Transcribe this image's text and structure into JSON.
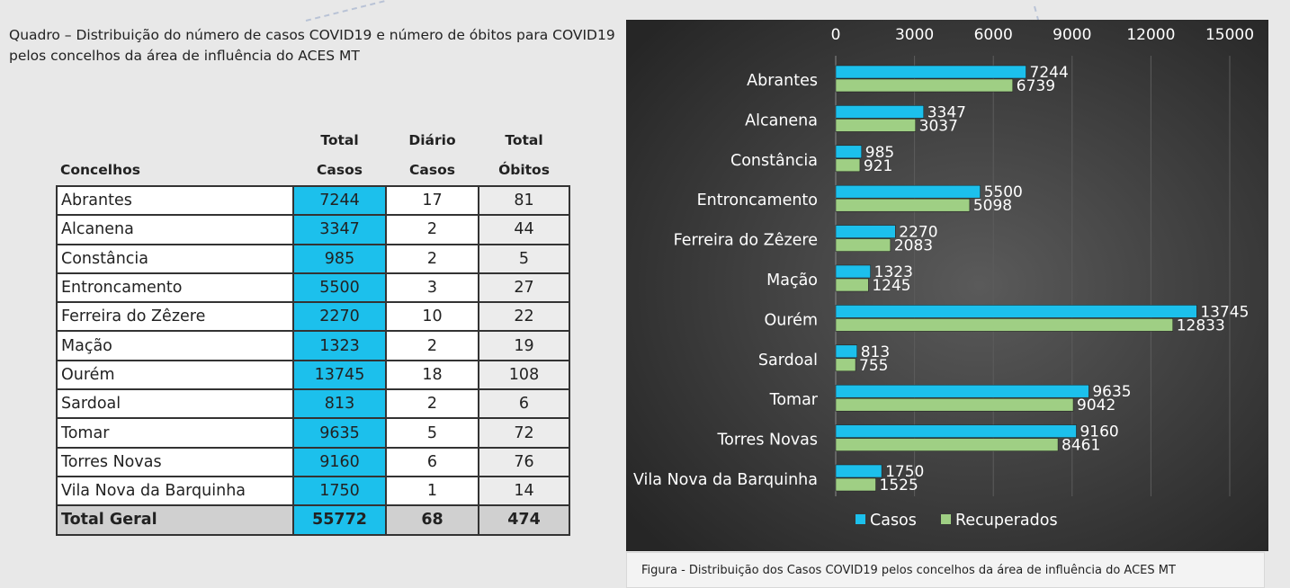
{
  "quadro": {
    "title": "Quadro – Distribuição do número de casos COVID19 e número de óbitos para COVID19 pelos concelhos da área de influência do ACES MT",
    "headers": {
      "concelhos": "Concelhos",
      "total_casos": [
        "Total",
        "Casos"
      ],
      "diario_casos": [
        "Diário",
        "Casos"
      ],
      "total_obitos": [
        "Total",
        "Óbitos"
      ]
    },
    "rows": [
      {
        "name": "Abrantes",
        "casos": "7244",
        "diario": "17",
        "obitos": "81"
      },
      {
        "name": "Alcanena",
        "casos": "3347",
        "diario": "2",
        "obitos": "44"
      },
      {
        "name": "Constância",
        "casos": "985",
        "diario": "2",
        "obitos": "5"
      },
      {
        "name": "Entroncamento",
        "casos": "5500",
        "diario": "3",
        "obitos": "27"
      },
      {
        "name": "Ferreira do Zêzere",
        "casos": "2270",
        "diario": "10",
        "obitos": "22"
      },
      {
        "name": "Mação",
        "casos": "1323",
        "diario": "2",
        "obitos": "19"
      },
      {
        "name": "Ourém",
        "casos": "13745",
        "diario": "18",
        "obitos": "108"
      },
      {
        "name": "Sardoal",
        "casos": "813",
        "diario": "2",
        "obitos": "6"
      },
      {
        "name": "Tomar",
        "casos": "9635",
        "diario": "5",
        "obitos": "72"
      },
      {
        "name": "Torres Novas",
        "casos": "9160",
        "diario": "6",
        "obitos": "76"
      },
      {
        "name": "Vila Nova da Barquinha",
        "casos": "1750",
        "diario": "1",
        "obitos": "14"
      }
    ],
    "total": {
      "name": "Total Geral",
      "casos": "55772",
      "diario": "68",
      "obitos": "474"
    }
  },
  "chart_data": {
    "type": "bar",
    "orientation": "horizontal",
    "categories": [
      "Abrantes",
      "Alcanena",
      "Constância",
      "Entroncamento",
      "Ferreira do Zêzere",
      "Mação",
      "Ourém",
      "Sardoal",
      "Tomar",
      "Torres Novas",
      "Vila Nova da Barquinha"
    ],
    "series": [
      {
        "name": "Casos",
        "color": "#1cc0ec",
        "values": [
          7244,
          3347,
          985,
          5500,
          2270,
          1323,
          13745,
          813,
          9635,
          9160,
          1750
        ]
      },
      {
        "name": "Recuperados",
        "color": "#9fcf84",
        "values": [
          6739,
          3037,
          921,
          5098,
          2083,
          1245,
          12833,
          755,
          9042,
          8461,
          1525
        ]
      }
    ],
    "xlim": [
      0,
      15000
    ],
    "xticks": [
      "0",
      "3000",
      "6000",
      "9000",
      "12000",
      "15000"
    ],
    "axis_position": "top",
    "legend": "bottom",
    "grid": true,
    "background": "#3a3a3a"
  },
  "caption": "Figura -  Distribuição dos Casos COVID19 pelos concelhos da área de influência do ACES MT"
}
